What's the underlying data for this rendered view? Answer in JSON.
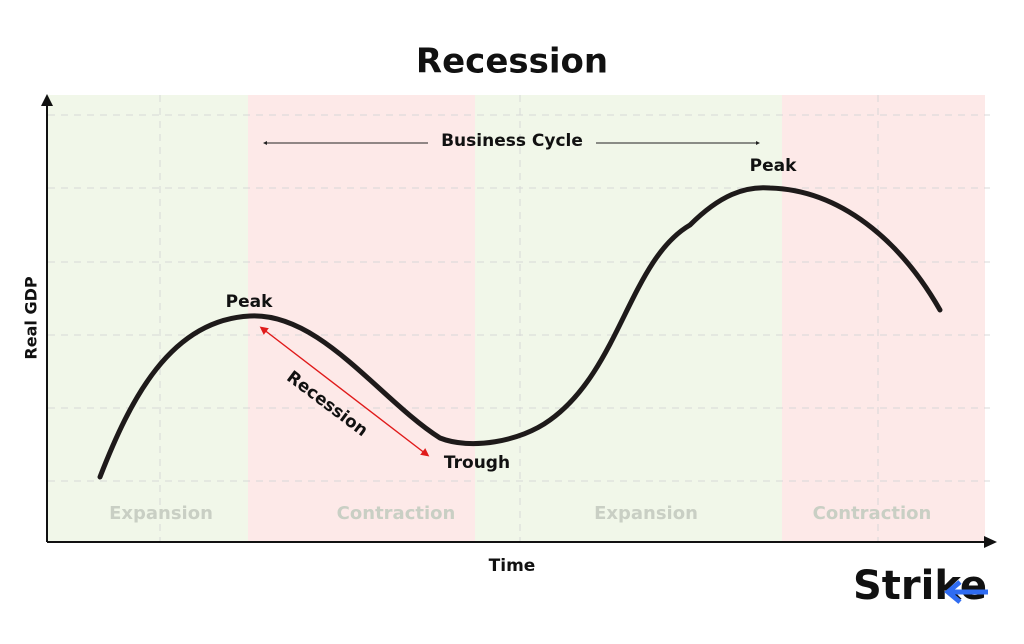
{
  "title": "Recession",
  "axes": {
    "y_label": "Real GDP",
    "x_label": "Time"
  },
  "phases": [
    {
      "label": "Expansion"
    },
    {
      "label": "Contraction"
    },
    {
      "label": "Expansion"
    },
    {
      "label": "Contraction"
    }
  ],
  "annotations": {
    "business_cycle": "Business Cycle",
    "peaks": [
      "Peak",
      "Peak"
    ],
    "trough": "Trough",
    "recession": "Recession"
  },
  "logo": "Strike"
}
